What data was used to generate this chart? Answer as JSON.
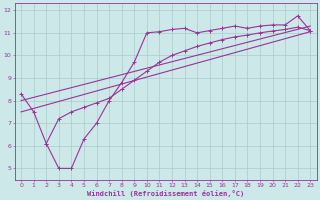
{
  "xlabel": "Windchill (Refroidissement éolien,°C)",
  "background_color": "#cde8e8",
  "grid_color": "#aacccc",
  "line_color": "#993399",
  "xlim": [
    -0.5,
    23.5
  ],
  "ylim": [
    4.5,
    12.3
  ],
  "xticks": [
    0,
    1,
    2,
    3,
    4,
    5,
    6,
    7,
    8,
    9,
    10,
    11,
    12,
    13,
    14,
    15,
    16,
    17,
    18,
    19,
    20,
    21,
    22,
    23
  ],
  "yticks": [
    5,
    6,
    7,
    8,
    9,
    10,
    11,
    12
  ],
  "curve1_x": [
    0,
    1,
    2,
    3,
    4,
    5,
    6,
    7,
    8,
    9,
    10,
    11,
    12,
    13,
    14,
    15,
    16,
    17,
    18,
    19,
    20,
    21,
    22,
    23
  ],
  "curve1_y": [
    8.3,
    7.5,
    6.1,
    5.0,
    5.0,
    6.3,
    7.0,
    8.0,
    8.8,
    9.7,
    11.0,
    11.05,
    11.15,
    11.2,
    11.0,
    11.1,
    11.2,
    11.3,
    11.2,
    11.3,
    11.35,
    11.35,
    11.75,
    11.1
  ],
  "curve2_x": [
    2,
    3,
    4,
    5,
    6,
    7,
    8,
    9,
    10,
    11,
    12,
    13,
    14,
    15,
    16,
    17,
    18,
    19,
    20,
    21,
    22,
    23
  ],
  "curve2_y": [
    6.1,
    7.2,
    7.5,
    7.7,
    7.9,
    8.1,
    8.5,
    8.9,
    9.3,
    9.7,
    10.0,
    10.2,
    10.4,
    10.55,
    10.7,
    10.82,
    10.9,
    11.0,
    11.08,
    11.15,
    11.25,
    11.1
  ],
  "line1_x": [
    0,
    23
  ],
  "line1_y": [
    7.5,
    11.05
  ],
  "line2_x": [
    0,
    23
  ],
  "line2_y": [
    8.0,
    11.3
  ]
}
